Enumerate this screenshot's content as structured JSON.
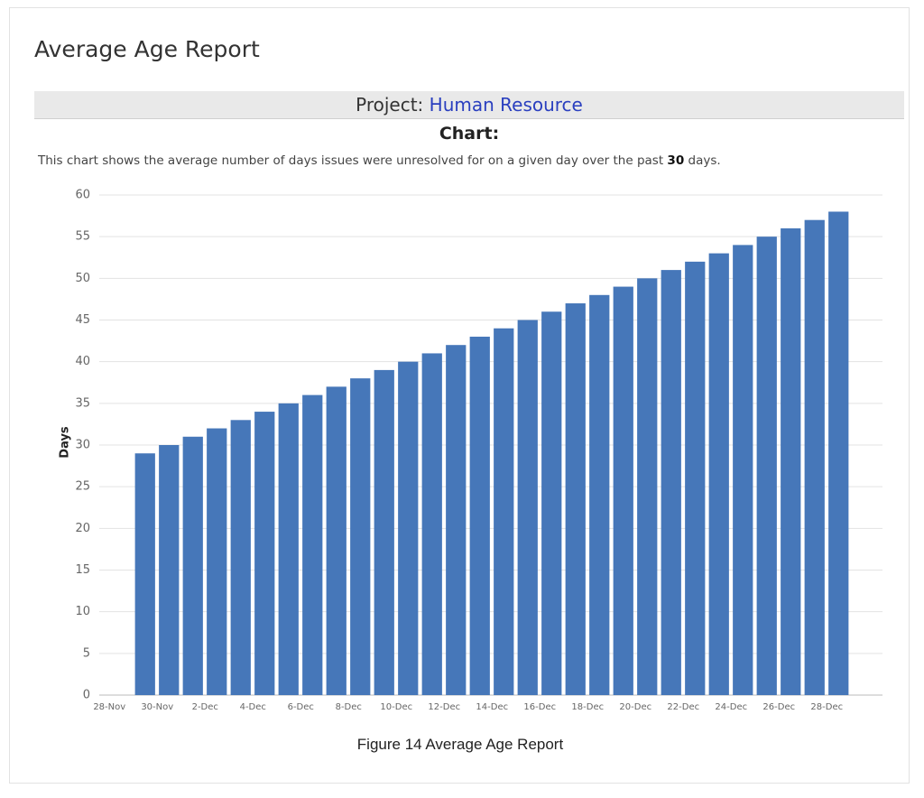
{
  "header": {
    "title": "Average Age Report",
    "project_label": "Project:",
    "project_name": "Human Resource",
    "chart_label": "Chart:",
    "description": {
      "before": "This chart shows the average number of days issues were unresolved for on a given day over the past",
      "days": "30",
      "after": "days."
    }
  },
  "caption": "Figure 14 Average Age Report",
  "chart_data": {
    "type": "bar",
    "y_label": "Days",
    "color": "#4677b9",
    "grid": true,
    "categories": [
      "28-Nov",
      null,
      "30-Nov",
      null,
      "2-Dec",
      null,
      "4-Dec",
      null,
      "6-Dec",
      null,
      "8-Dec",
      null,
      "10-Dec",
      null,
      "12-Dec",
      null,
      "14-Dec",
      null,
      "16-Dec",
      null,
      "18-Dec",
      null,
      "20-Dec",
      null,
      "22-Dec",
      null,
      "24-Dec",
      null,
      "26-Dec",
      null,
      "28-Dec"
    ],
    "values": [
      null,
      29,
      30,
      31,
      32,
      33,
      34,
      35,
      36,
      37,
      38,
      39,
      40,
      41,
      42,
      43,
      44,
      45,
      46,
      47,
      48,
      49,
      50,
      51,
      52,
      53,
      54,
      55,
      56,
      57,
      58
    ],
    "ylim": [
      0,
      60
    ],
    "yticks": [
      0,
      5,
      10,
      15,
      20,
      25,
      30,
      35,
      40,
      45,
      50,
      55,
      60
    ]
  }
}
